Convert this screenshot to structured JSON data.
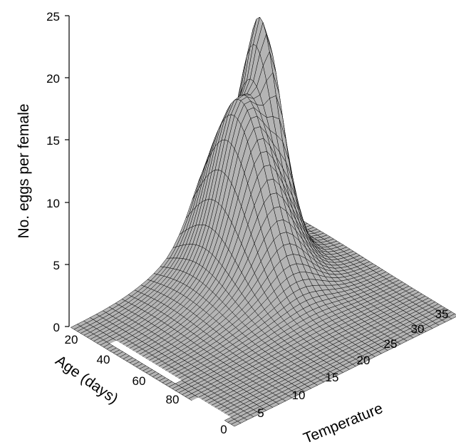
{
  "chart_data": {
    "type": "surface3d",
    "title": "",
    "zlabel": "No. eggs per female",
    "ylabel": "Age (days)",
    "xlabel": "Temperature",
    "zlim": [
      0,
      25
    ],
    "z_ticks": [
      "0",
      "5",
      "10",
      "15",
      "20",
      "25"
    ],
    "age_ticks": [
      "20",
      "40",
      "60",
      "80"
    ],
    "temp_ticks": [
      "0",
      "5",
      "10",
      "15",
      "20",
      "25",
      "30",
      "35"
    ],
    "temp_range": [
      0,
      35
    ],
    "age_range": [
      1,
      100
    ],
    "surface_color": "#b4b4b4",
    "grid_color": "#000000",
    "peaks": [
      {
        "temperature": 27.5,
        "age": 10,
        "eggs": 23.2
      },
      {
        "temperature": 22.5,
        "age": 18,
        "eggs": 14.6
      }
    ],
    "zero_regions": [
      {
        "temperature": 1.5,
        "age_from": 20,
        "age_to": 60
      },
      {
        "temperature": 0.5,
        "age_from": 75,
        "age_to": 95
      },
      {
        "temperature": 33,
        "age_from": 6,
        "age_to": 12
      }
    ]
  }
}
